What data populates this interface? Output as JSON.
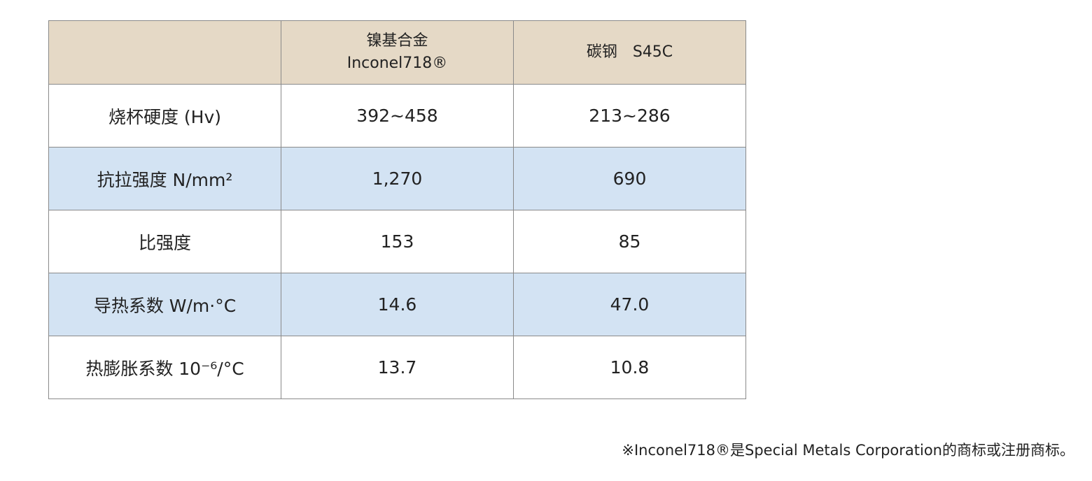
{
  "table": {
    "header": [
      [
        "镍基合金",
        "Inconel718®"
      ],
      [
        "碳钢　S45C"
      ]
    ],
    "rows": [
      [
        "烧杯硬度 (Hv)",
        "392~458",
        "213~286"
      ],
      [
        "抗拉强度  N/mm²",
        "1,270",
        "690"
      ],
      [
        "比强度",
        "153",
        "85"
      ],
      [
        "导热系数  W/m·°C",
        "14.6",
        "47.0"
      ],
      [
        "热膨胀系数  10⁻⁶/°C",
        "13.7",
        "10.8"
      ]
    ]
  },
  "footnote": "※Inconel718®是Special Metals Corporation的商标或注册商标。"
}
